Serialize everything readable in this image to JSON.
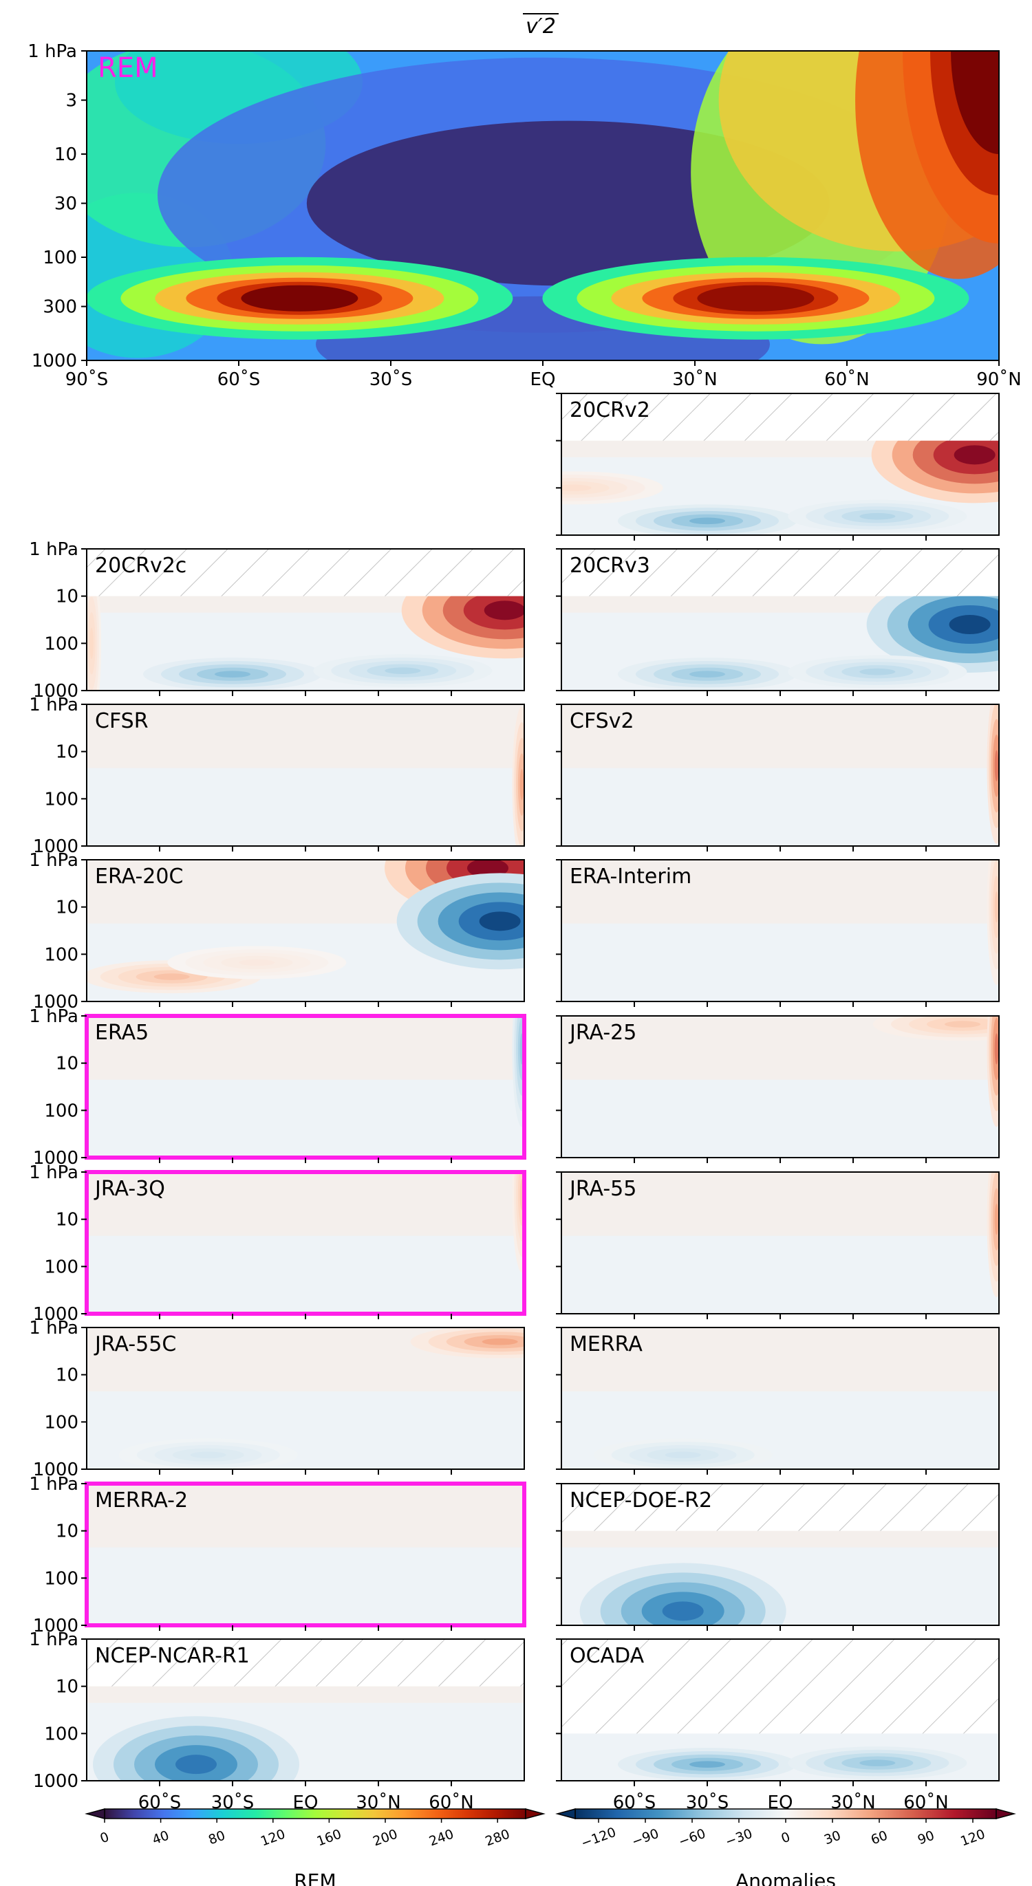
{
  "figure": {
    "title": "v′2",
    "remLabel": "REM",
    "colors": {
      "highlight": "#ff1fe8",
      "remLabel": "#ff1fe8",
      "hatch": "#bdbdbd"
    }
  },
  "chart_data": {
    "type": "heatmap",
    "main": {
      "name": "REM",
      "x_ticks": [
        "90˚S",
        "60˚S",
        "30˚S",
        "EQ",
        "30˚N",
        "60˚N",
        "90˚N"
      ],
      "y_ticks": [
        "1 hPa",
        "3",
        "10",
        "30",
        "100",
        "300",
        "1000"
      ],
      "y_scale": "log",
      "y_range_hPa": [
        1000,
        1
      ],
      "x_range_deg": [
        -90,
        90
      ],
      "colormap": "turbo",
      "features": [
        {
          "lat": -48,
          "p": 250,
          "value": 300
        },
        {
          "lat": 42,
          "p": 250,
          "value": 290
        },
        {
          "lat": 90,
          "p": 1,
          "value": 300
        },
        {
          "lat": 5,
          "p": 30,
          "value": 5
        }
      ]
    },
    "panel_y_ticks": [
      "1 hPa",
      "10",
      "100",
      "1000"
    ],
    "bottom_x_ticks": [
      "60˚S",
      "30˚S",
      "EQ",
      "30˚N",
      "60˚N"
    ],
    "colorbar_rem": {
      "label": "REM",
      "ticks": [
        "0",
        "40",
        "80",
        "120",
        "160",
        "200",
        "240",
        "280"
      ],
      "range": [
        0,
        300
      ]
    },
    "colorbar_anom": {
      "label": "Anomalies",
      "ticks": [
        "−120",
        "−90",
        "−60",
        "−30",
        "0",
        "30",
        "60",
        "90",
        "120"
      ],
      "range": [
        -135,
        135
      ]
    },
    "panels": [
      {
        "name": "20CRv2",
        "col": 1,
        "row": 0,
        "hatch_top": 10,
        "highlight": false,
        "features": [
          {
            "lat": 80,
            "p": 20,
            "value": 140
          },
          {
            "lat": -30,
            "p": 500,
            "value": -70
          },
          {
            "lat": 40,
            "p": 400,
            "value": -45
          },
          {
            "lat": -85,
            "p": 100,
            "value": 25
          }
        ]
      },
      {
        "name": "20CRv2c",
        "col": 0,
        "row": 1,
        "hatch_top": 10,
        "highlight": false,
        "features": [
          {
            "lat": 82,
            "p": 20,
            "value": 140
          },
          {
            "lat": -30,
            "p": 450,
            "value": -65
          },
          {
            "lat": 40,
            "p": 380,
            "value": -45
          },
          {
            "lat": -88,
            "p": 100,
            "value": 30
          }
        ]
      },
      {
        "name": "20CRv3",
        "col": 1,
        "row": 1,
        "hatch_top": 10,
        "highlight": false,
        "features": [
          {
            "lat": 78,
            "p": 40,
            "value": -140
          },
          {
            "lat": -30,
            "p": 450,
            "value": -60
          },
          {
            "lat": 40,
            "p": 400,
            "value": -45
          }
        ]
      },
      {
        "name": "CFSR",
        "col": 0,
        "row": 2,
        "hatch_top": null,
        "highlight": false,
        "features": [
          {
            "lat": 89,
            "p": 50,
            "value": 60
          }
        ]
      },
      {
        "name": "CFSv2",
        "col": 1,
        "row": 2,
        "hatch_top": null,
        "highlight": false,
        "features": [
          {
            "lat": 89,
            "p": 20,
            "value": 80
          }
        ]
      },
      {
        "name": "ERA-20C",
        "col": 0,
        "row": 3,
        "hatch_top": null,
        "highlight": false,
        "features": [
          {
            "lat": 75,
            "p": 1.5,
            "value": 140
          },
          {
            "lat": 80,
            "p": 20,
            "value": -140
          },
          {
            "lat": -55,
            "p": 300,
            "value": 45
          },
          {
            "lat": -20,
            "p": 150,
            "value": 15
          }
        ]
      },
      {
        "name": "ERA-Interim",
        "col": 1,
        "row": 3,
        "hatch_top": null,
        "highlight": false,
        "features": [
          {
            "lat": 89,
            "p": 10,
            "value": 40
          }
        ]
      },
      {
        "name": "ERA5",
        "col": 0,
        "row": 4,
        "hatch_top": null,
        "highlight": true,
        "features": [
          {
            "lat": 89,
            "p": 5,
            "value": -60
          }
        ]
      },
      {
        "name": "JRA-25",
        "col": 1,
        "row": 4,
        "hatch_top": null,
        "highlight": false,
        "features": [
          {
            "lat": 75,
            "p": 1.5,
            "value": 40
          },
          {
            "lat": 89,
            "p": 5,
            "value": 80
          }
        ]
      },
      {
        "name": "JRA-3Q",
        "col": 0,
        "row": 5,
        "hatch_top": null,
        "highlight": true,
        "features": [
          {
            "lat": 89,
            "p": 3,
            "value": 40
          }
        ]
      },
      {
        "name": "JRA-55",
        "col": 1,
        "row": 5,
        "hatch_top": null,
        "highlight": false,
        "features": [
          {
            "lat": 89,
            "p": 10,
            "value": 60
          }
        ]
      },
      {
        "name": "JRA-55C",
        "col": 0,
        "row": 6,
        "hatch_top": null,
        "highlight": false,
        "features": [
          {
            "lat": 80,
            "p": 2,
            "value": 60
          },
          {
            "lat": -40,
            "p": 500,
            "value": -25
          }
        ]
      },
      {
        "name": "MERRA",
        "col": 1,
        "row": 6,
        "hatch_top": null,
        "highlight": false,
        "features": [
          {
            "lat": -40,
            "p": 500,
            "value": -30
          }
        ]
      },
      {
        "name": "MERRA-2",
        "col": 0,
        "row": 7,
        "hatch_top": null,
        "highlight": true,
        "features": []
      },
      {
        "name": "NCEP-DOE-R2",
        "col": 1,
        "row": 7,
        "hatch_top": 10,
        "highlight": false,
        "features": [
          {
            "lat": -40,
            "p": 500,
            "value": -110
          }
        ]
      },
      {
        "name": "NCEP-NCAR-R1",
        "col": 0,
        "row": 8,
        "hatch_top": 10,
        "highlight": false,
        "features": [
          {
            "lat": -45,
            "p": 450,
            "value": -110
          }
        ]
      },
      {
        "name": "OCADA",
        "col": 1,
        "row": 8,
        "hatch_top": 100,
        "highlight": false,
        "features": [
          {
            "lat": -30,
            "p": 450,
            "value": -75
          },
          {
            "lat": 40,
            "p": 420,
            "value": -60
          }
        ]
      }
    ]
  }
}
